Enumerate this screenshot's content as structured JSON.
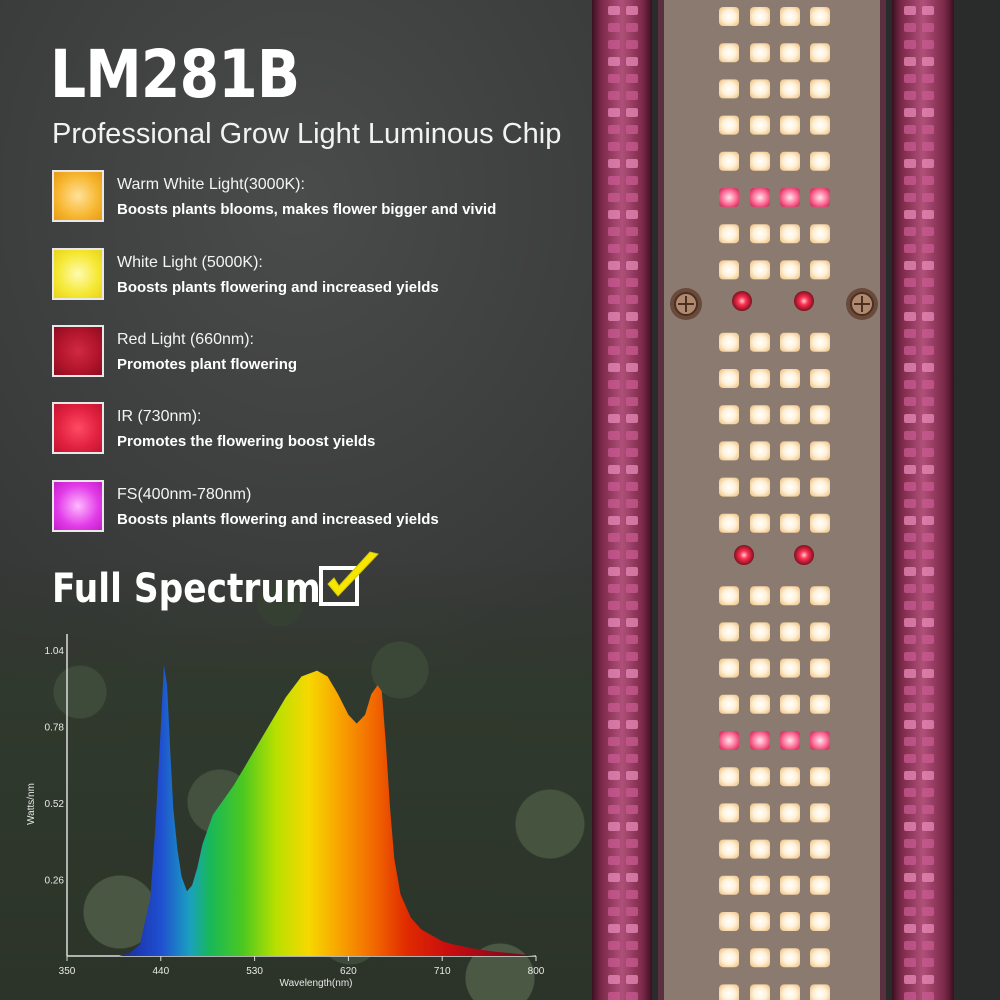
{
  "headline": "LM281B",
  "subtitle": "Professional Grow Light Luminous Chip",
  "specs": [
    {
      "title": "Warm White Light(3000K):",
      "desc": "Boosts plants blooms, makes flower bigger and vivid",
      "color": "#f7b730",
      "icon": "warm-white-swatch"
    },
    {
      "title": "White Light (5000K):",
      "desc": "Boosts plants flowering and increased yields",
      "color": "#f5e834",
      "icon": "white-swatch"
    },
    {
      "title": "Red Light (660nm):",
      "desc": "Promotes plant flowering",
      "color": "#b0142b",
      "icon": "red-swatch"
    },
    {
      "title": "IR (730nm):",
      "desc": "Promotes the flowering boost yields",
      "color": "#e0213f",
      "icon": "ir-swatch"
    },
    {
      "title": "FS(400nm-780nm)",
      "desc": "Boosts plants flowering and increased yields",
      "color": "#e23ce8",
      "icon": "fs-swatch"
    }
  ],
  "full_spectrum": "Full Spectrum",
  "check_icon": "checkmark-icon",
  "chart_data": {
    "type": "area",
    "xlabel": "Wavelength(nm)",
    "ylabel": "Watts/nm",
    "x_ticks": [
      "350",
      "440",
      "530",
      "620",
      "710",
      "800"
    ],
    "y_ticks": [
      "1.04",
      "0.78",
      "0.52",
      "0.26"
    ],
    "xlim": [
      350,
      800
    ],
    "ylim": [
      0,
      1.04
    ],
    "x": [
      400,
      410,
      420,
      430,
      435,
      440,
      443,
      446,
      449,
      452,
      456,
      460,
      465,
      470,
      475,
      480,
      490,
      500,
      510,
      520,
      530,
      545,
      560,
      575,
      590,
      600,
      610,
      620,
      628,
      636,
      642,
      648,
      652,
      656,
      660,
      664,
      670,
      680,
      690,
      700,
      710,
      720,
      740,
      760,
      780,
      800
    ],
    "y": [
      0.0,
      0.01,
      0.04,
      0.2,
      0.45,
      0.78,
      0.99,
      0.92,
      0.7,
      0.5,
      0.36,
      0.27,
      0.22,
      0.24,
      0.3,
      0.38,
      0.48,
      0.53,
      0.58,
      0.64,
      0.7,
      0.79,
      0.88,
      0.95,
      0.97,
      0.95,
      0.89,
      0.82,
      0.79,
      0.82,
      0.89,
      0.92,
      0.9,
      0.72,
      0.5,
      0.33,
      0.21,
      0.13,
      0.09,
      0.07,
      0.05,
      0.04,
      0.025,
      0.015,
      0.008,
      0.0
    ]
  }
}
